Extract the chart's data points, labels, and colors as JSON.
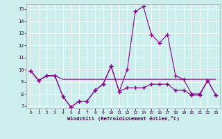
{
  "xlabel": "Windchill (Refroidissement éolien,°C)",
  "background_color": "#cceeed",
  "line_color": "#880088",
  "xlim": [
    -0.5,
    23.5
  ],
  "ylim": [
    6.8,
    15.4
  ],
  "yticks": [
    7,
    8,
    9,
    10,
    11,
    12,
    13,
    14,
    15
  ],
  "xticks": [
    0,
    1,
    2,
    3,
    4,
    5,
    6,
    7,
    8,
    9,
    10,
    11,
    12,
    13,
    14,
    15,
    16,
    17,
    18,
    19,
    20,
    21,
    22,
    23
  ],
  "series1_x": [
    0,
    1,
    2,
    3,
    4,
    5,
    6,
    7,
    8,
    9,
    10,
    11,
    12,
    13,
    14,
    15,
    16,
    17,
    18,
    19,
    20,
    21,
    22,
    23
  ],
  "series1_y": [
    9.9,
    9.1,
    9.5,
    9.5,
    7.8,
    6.9,
    7.4,
    7.4,
    8.3,
    8.8,
    10.3,
    8.2,
    10.0,
    14.8,
    15.2,
    12.9,
    12.2,
    12.9,
    9.5,
    9.2,
    8.0,
    8.0,
    9.1,
    7.9
  ],
  "series2_x": [
    0,
    1,
    2,
    3,
    4,
    5,
    6,
    7,
    8,
    9,
    10,
    11,
    12,
    13,
    14,
    15,
    16,
    17,
    18,
    19,
    20,
    21,
    22,
    23
  ],
  "series2_y": [
    9.9,
    9.1,
    9.5,
    9.5,
    9.2,
    9.2,
    9.2,
    9.2,
    9.2,
    9.2,
    9.2,
    9.2,
    9.2,
    9.2,
    9.2,
    9.2,
    9.2,
    9.2,
    9.2,
    9.2,
    9.2,
    9.2,
    9.2,
    9.2
  ],
  "series3_x": [
    0,
    1,
    2,
    3,
    4,
    5,
    6,
    7,
    8,
    9,
    10,
    11,
    12,
    13,
    14,
    15,
    16,
    17,
    18,
    19,
    20,
    21,
    22,
    23
  ],
  "series3_y": [
    9.9,
    9.1,
    9.5,
    9.5,
    7.8,
    6.9,
    7.4,
    7.4,
    8.3,
    8.8,
    10.3,
    8.2,
    8.5,
    8.5,
    8.5,
    8.8,
    8.8,
    8.8,
    8.3,
    8.3,
    7.9,
    7.9,
    9.1,
    7.9
  ]
}
